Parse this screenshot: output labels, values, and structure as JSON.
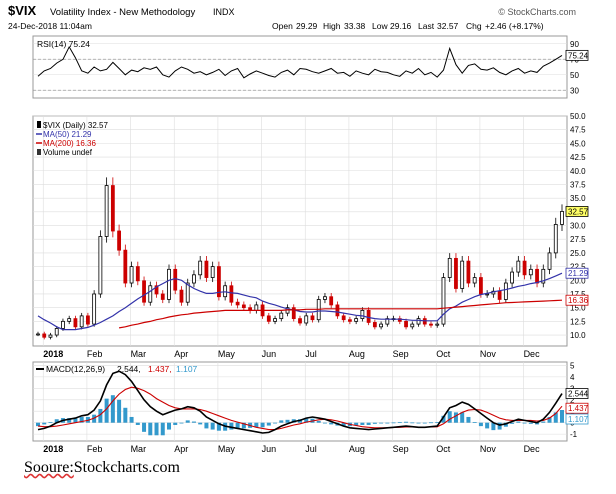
{
  "header": {
    "symbol": "$VIX",
    "name": "Volatility Index - New Methodology",
    "exchange": "INDX",
    "credit": "© StockCharts.com",
    "datetime": "24-Dec-2018 11:04am",
    "quote": {
      "open_label": "Open",
      "open": "29.29",
      "high_label": "High",
      "high": "33.38",
      "low_label": "Low",
      "low": "29.16",
      "last_label": "Last",
      "last": "32.57",
      "chg_label": "Chg",
      "chg": "+2.46 (+8.17%)"
    }
  },
  "source_prefix": "Sooure:",
  "source_site": "Stockcharts.com",
  "colors": {
    "price_up": "#000000",
    "price_down": "#cc0000",
    "ma50": "#3333aa",
    "ma200": "#cc0000",
    "rsi": "#000000",
    "macd": "#000000",
    "signal": "#cc0000",
    "hist": "#3399cc",
    "grid": "#dddddd",
    "axis": "#888888"
  },
  "chart_data": [
    {
      "type": "line",
      "panel": "rsi",
      "legend": "RSI(14) 75.24",
      "last_label": "75.24",
      "y_ticks": [
        "90",
        "70",
        "50",
        "30"
      ],
      "reference_lines": [
        70,
        30
      ],
      "ylim": [
        20,
        100
      ],
      "series": [
        {
          "name": "RSI(14)",
          "values": [
            48,
            55,
            58,
            65,
            70,
            86,
            72,
            55,
            52,
            60,
            55,
            57,
            66,
            58,
            50,
            56,
            54,
            59,
            57,
            60,
            50,
            47,
            55,
            60,
            57,
            52,
            54,
            50,
            53,
            57,
            49,
            55,
            58,
            46,
            51,
            55,
            52,
            49,
            47,
            53,
            56,
            50,
            58,
            57,
            54,
            52,
            55,
            58,
            52,
            53,
            48,
            55,
            52,
            50,
            57,
            54,
            53,
            50,
            48,
            55,
            52,
            58,
            50,
            53,
            47,
            56,
            84,
            63,
            52,
            62,
            64,
            57,
            56,
            59,
            53,
            50,
            55,
            58,
            52,
            55,
            53,
            61,
            65,
            70,
            75
          ]
        }
      ]
    },
    {
      "type": "candlestick",
      "panel": "price",
      "legend": [
        "$VIX (Daily) 32.57",
        "MA(50) 21.29",
        "MA(200) 16.36",
        "Volume undef"
      ],
      "x_labels": [
        "2018",
        "Feb",
        "Mar",
        "Apr",
        "May",
        "Jun",
        "Jul",
        "Aug",
        "Sep",
        "Oct",
        "Nov",
        "Dec"
      ],
      "y_ticks": [
        "50.0",
        "47.5",
        "45.0",
        "42.5",
        "40.0",
        "37.5",
        "35.0",
        "32.5",
        "30.0",
        "27.5",
        "25.0",
        "22.5",
        "20.0",
        "17.5",
        "15.0",
        "12.5",
        "10.0"
      ],
      "value_labels": {
        "last": "32.57",
        "ma50": "21.29",
        "ma200": "16.36"
      },
      "ylim": [
        8,
        50
      ],
      "close": [
        10.2,
        9.6,
        10.0,
        11.2,
        12.5,
        13.0,
        11.5,
        13.5,
        12.0,
        17.5,
        28.0,
        37.3,
        29.0,
        25.5,
        19.5,
        22.5,
        19.9,
        16.0,
        19.0,
        17.5,
        16.5,
        22.0,
        18.2,
        16.0,
        19.5,
        21.0,
        23.5,
        20.5,
        22.5,
        17.0,
        19.0,
        16.0,
        15.5,
        15.0,
        14.5,
        15.5,
        13.5,
        12.5,
        13.0,
        14.0,
        15.0,
        13.0,
        12.2,
        13.5,
        12.8,
        16.5,
        17.0,
        15.5,
        13.5,
        12.8,
        12.5,
        13.0,
        14.5,
        12.3,
        11.5,
        12.0,
        13.0,
        13.0,
        12.5,
        11.5,
        12.0,
        13.0,
        12.0,
        11.8,
        12.0,
        20.5,
        24.0,
        18.5,
        23.5,
        19.5,
        20.5,
        17.5,
        17.5,
        18.0,
        16.5,
        19.5,
        21.5,
        23.5,
        21.0,
        22.0,
        19.5,
        22.0,
        25.0,
        30.2,
        32.57
      ],
      "series": [
        {
          "name": "MA(50)",
          "values": [
            13.5,
            12.8,
            12.2,
            11.5,
            11.0,
            11.0,
            11.0,
            11.2,
            11.4,
            11.8,
            12.3,
            12.9,
            13.5,
            14.3,
            15.0,
            15.8,
            16.6,
            17.3,
            18.0,
            18.8,
            19.4,
            20.0,
            20.3,
            20.0,
            19.2,
            18.5,
            18.0,
            17.6,
            17.6,
            17.8,
            17.9,
            17.7,
            17.6,
            17.3,
            17.0,
            16.8,
            16.2,
            15.8,
            15.5,
            15.1,
            14.8,
            14.6,
            14.3,
            14.2,
            14.2,
            14.4,
            14.4,
            14.3,
            14.2,
            14.0,
            13.8,
            13.6,
            13.5,
            13.2,
            13.0,
            12.9,
            12.9,
            12.9,
            12.9,
            12.8,
            12.7,
            12.7,
            12.6,
            12.6,
            12.6,
            13.8,
            14.8,
            15.3,
            16.0,
            16.5,
            17.0,
            17.4,
            17.6,
            17.9,
            18.1,
            18.3,
            18.6,
            18.9,
            19.1,
            19.4,
            19.6,
            19.9,
            20.3,
            20.8,
            21.29
          ]
        },
        {
          "name": "MA(200)",
          "values": [
            null,
            null,
            null,
            null,
            null,
            null,
            null,
            null,
            null,
            null,
            null,
            null,
            null,
            11.3,
            11.5,
            11.8,
            12.0,
            12.3,
            12.5,
            12.8,
            13.0,
            13.3,
            13.5,
            13.7,
            13.8,
            14.0,
            14.1,
            14.2,
            14.3,
            14.4,
            14.5,
            14.5,
            14.5,
            14.5,
            14.5,
            14.5,
            14.5,
            14.5,
            14.5,
            14.5,
            14.6,
            14.6,
            14.6,
            14.7,
            14.7,
            14.7,
            14.8,
            14.8,
            14.8,
            14.8,
            14.8,
            14.8,
            14.8,
            14.8,
            14.8,
            14.8,
            14.8,
            14.8,
            14.8,
            14.8,
            14.8,
            14.8,
            14.8,
            14.8,
            14.8,
            14.9,
            15.0,
            15.1,
            15.2,
            15.3,
            15.4,
            15.5,
            15.6,
            15.7,
            15.8,
            15.9,
            15.95,
            16.0,
            16.05,
            16.1,
            16.15,
            16.2,
            16.25,
            16.3,
            16.36
          ]
        }
      ]
    },
    {
      "type": "line",
      "panel": "macd",
      "legend": [
        "MACD(12,26,9)",
        "2.544,",
        "1.437,",
        "1.107"
      ],
      "x_labels": [
        "2018",
        "Feb",
        "Mar",
        "Apr",
        "May",
        "Jun",
        "Jul",
        "Aug",
        "Sep",
        "Oct",
        "Nov",
        "Dec"
      ],
      "y_ticks": [
        "5",
        "4",
        "3",
        "2",
        "1",
        "0",
        "-1"
      ],
      "value_labels": {
        "macd": "2.544",
        "signal": "1.437",
        "hist": "1.107"
      },
      "ylim": [
        -1.6,
        5.3
      ],
      "series": [
        {
          "name": "MACD",
          "values": [
            -0.6,
            -0.5,
            -0.3,
            0.0,
            0.2,
            0.3,
            0.4,
            0.6,
            0.7,
            1.1,
            1.9,
            3.3,
            4.3,
            4.5,
            4.2,
            3.6,
            2.8,
            2.0,
            1.4,
            1.0,
            0.7,
            0.9,
            1.1,
            1.2,
            1.4,
            1.3,
            1.0,
            0.5,
            0.2,
            -0.1,
            -0.3,
            -0.4,
            -0.5,
            -0.6,
            -0.7,
            -0.8,
            -0.9,
            -0.85,
            -0.6,
            -0.3,
            -0.1,
            0.1,
            0.2,
            0.4,
            0.5,
            0.4,
            0.3,
            0.1,
            -0.1,
            -0.3,
            -0.45,
            -0.5,
            -0.55,
            -0.6,
            -0.55,
            -0.5,
            -0.45,
            -0.4,
            -0.35,
            -0.3,
            -0.35,
            -0.4,
            -0.4,
            -0.35,
            -0.3,
            0.5,
            1.3,
            1.5,
            1.8,
            1.6,
            1.2,
            0.8,
            0.4,
            0.0,
            -0.2,
            -0.1,
            0.1,
            0.3,
            0.2,
            0.1,
            0.0,
            0.3,
            0.9,
            1.7,
            2.54
          ]
        },
        {
          "name": "Signal",
          "values": [
            -0.3,
            -0.35,
            -0.35,
            -0.3,
            -0.2,
            -0.1,
            0.0,
            0.1,
            0.2,
            0.4,
            0.7,
            1.2,
            1.9,
            2.5,
            2.9,
            3.1,
            3.0,
            2.8,
            2.5,
            2.1,
            1.8,
            1.5,
            1.3,
            1.2,
            1.2,
            1.2,
            1.15,
            1.0,
            0.8,
            0.6,
            0.4,
            0.2,
            0.05,
            -0.1,
            -0.25,
            -0.4,
            -0.5,
            -0.6,
            -0.6,
            -0.5,
            -0.35,
            -0.2,
            -0.1,
            0.05,
            0.15,
            0.25,
            0.3,
            0.25,
            0.15,
            0.0,
            -0.15,
            -0.25,
            -0.35,
            -0.4,
            -0.45,
            -0.45,
            -0.45,
            -0.42,
            -0.4,
            -0.38,
            -0.37,
            -0.38,
            -0.38,
            -0.38,
            -0.36,
            -0.1,
            0.3,
            0.6,
            0.9,
            1.1,
            1.15,
            1.1,
            0.9,
            0.65,
            0.4,
            0.25,
            0.2,
            0.2,
            0.2,
            0.2,
            0.15,
            0.2,
            0.4,
            0.8,
            1.437
          ]
        },
        {
          "name": "Histogram",
          "values": [
            -0.3,
            -0.15,
            0.05,
            0.3,
            0.4,
            0.4,
            0.4,
            0.5,
            0.5,
            0.7,
            1.2,
            2.1,
            2.4,
            2.0,
            1.3,
            0.5,
            -0.2,
            -0.8,
            -1.1,
            -1.1,
            -1.1,
            -0.6,
            -0.2,
            0.0,
            0.2,
            0.1,
            -0.15,
            -0.5,
            -0.6,
            -0.7,
            -0.7,
            -0.6,
            -0.55,
            -0.5,
            -0.45,
            -0.4,
            -0.4,
            -0.25,
            0.0,
            0.2,
            0.25,
            0.3,
            0.3,
            0.35,
            0.35,
            0.15,
            0.0,
            -0.15,
            -0.25,
            -0.3,
            -0.3,
            -0.25,
            -0.2,
            -0.2,
            -0.1,
            -0.05,
            0.0,
            0.02,
            0.05,
            0.08,
            0.02,
            -0.02,
            -0.02,
            0.03,
            0.06,
            0.6,
            1.0,
            0.9,
            0.9,
            0.5,
            0.05,
            -0.3,
            -0.5,
            -0.65,
            -0.6,
            -0.35,
            -0.1,
            0.1,
            0.0,
            -0.1,
            -0.15,
            0.1,
            0.5,
            0.9,
            1.107
          ]
        }
      ]
    }
  ]
}
